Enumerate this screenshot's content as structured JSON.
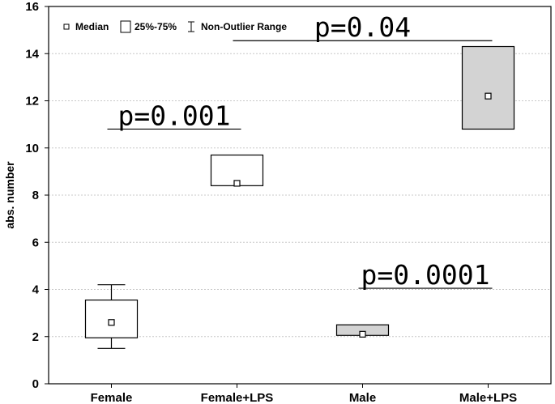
{
  "chart_data": {
    "type": "box",
    "title": "",
    "ylabel": "abs. number",
    "xlabel": "",
    "ylim": [
      0,
      16
    ],
    "yticks": [
      0,
      2,
      4,
      6,
      8,
      10,
      12,
      14,
      16
    ],
    "grid": true,
    "legend": {
      "placement": "top-left",
      "entries": [
        "Median",
        "25%-75%",
        "Non-Outlier Range"
      ]
    },
    "categories": [
      "Female",
      "Female+LPS",
      "Male",
      "Male+LPS"
    ],
    "boxes": [
      {
        "category": "Female",
        "median": 2.6,
        "q1": 1.95,
        "q3": 3.55,
        "whisker_low": 1.5,
        "whisker_high": 4.2,
        "fill": "#ffffff"
      },
      {
        "category": "Female+LPS",
        "median": 8.5,
        "q1": 8.4,
        "q3": 9.7,
        "whisker_low": null,
        "whisker_high": null,
        "fill": "#ffffff"
      },
      {
        "category": "Male",
        "median": 2.1,
        "q1": 2.05,
        "q3": 2.5,
        "whisker_low": null,
        "whisker_high": null,
        "fill": "#d3d3d3"
      },
      {
        "category": "Male+LPS",
        "median": 12.2,
        "q1": 10.8,
        "q3": 14.3,
        "whisker_low": null,
        "whisker_high": null,
        "fill": "#d3d3d3"
      }
    ],
    "annotations": [
      {
        "text": "p=0.001",
        "y": 10.8,
        "from": "Female",
        "to": "Female+LPS"
      },
      {
        "text": "p=0.04",
        "y": 14.55,
        "from": "Female+LPS",
        "to": "Male+LPS"
      },
      {
        "text": "p=0.0001",
        "y": 4.05,
        "from": "Male",
        "to": "Male+LPS"
      }
    ]
  }
}
